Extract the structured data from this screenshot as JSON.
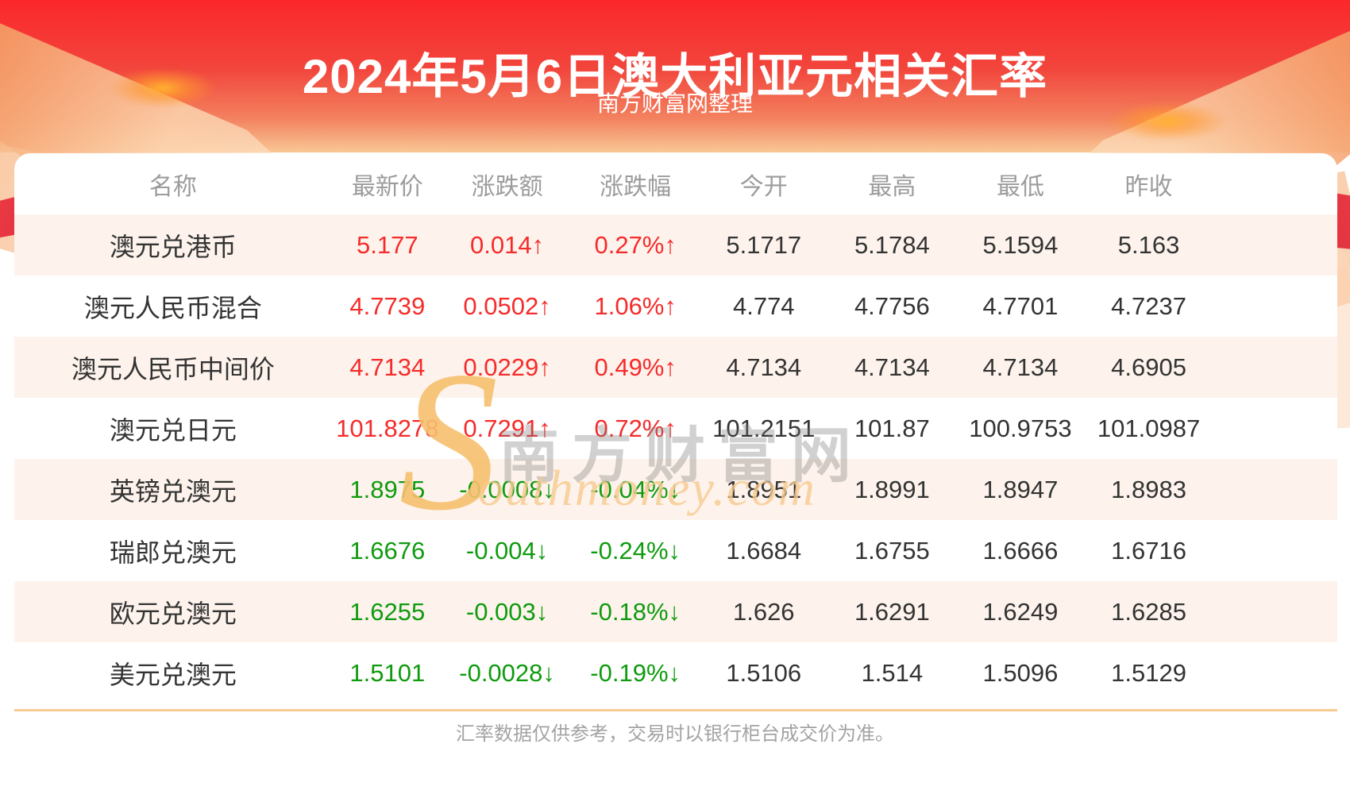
{
  "page": {
    "title": "2024年5月6日澳大利亚元相关汇率",
    "subtitle": "南方财富网整理",
    "footer_note": "汇率数据仅供参考，交易时以银行柜台成交价为准。"
  },
  "watermark": {
    "initial": "S",
    "cjk": "南方财富网",
    "latin": "outhmoney.com"
  },
  "arrows": {
    "up": "↑",
    "down": "↓"
  },
  "colors": {
    "hero_top": "#fb272b",
    "hero_mid": "#f2453c",
    "hero_low": "#f3825f",
    "hero_bottom": "#f9c795",
    "up": "#f62b2b",
    "down": "#0f9b0f",
    "stripe": "#fdf3ec",
    "divider": "#f6ca92",
    "header_text": "#9c9c9c",
    "cell_text": "#333333",
    "footer_text": "#a3a3a3"
  },
  "table": {
    "columns": [
      "名称",
      "最新价",
      "涨跌额",
      "涨跌幅",
      "今开",
      "最高",
      "最低",
      "昨收"
    ],
    "rows": [
      {
        "name": "澳元兑港币",
        "latest": "5.177",
        "change": "0.014",
        "change_pct": "0.27%",
        "trend": "up",
        "open": "5.1717",
        "high": "5.1784",
        "low": "5.1594",
        "prev_close": "5.163"
      },
      {
        "name": "澳元人民币混合",
        "latest": "4.7739",
        "change": "0.0502",
        "change_pct": "1.06%",
        "trend": "up",
        "open": "4.774",
        "high": "4.7756",
        "low": "4.7701",
        "prev_close": "4.7237"
      },
      {
        "name": "澳元人民币中间价",
        "latest": "4.7134",
        "change": "0.0229",
        "change_pct": "0.49%",
        "trend": "up",
        "open": "4.7134",
        "high": "4.7134",
        "low": "4.7134",
        "prev_close": "4.6905"
      },
      {
        "name": "澳元兑日元",
        "latest": "101.8278",
        "change": "0.7291",
        "change_pct": "0.72%",
        "trend": "up",
        "open": "101.2151",
        "high": "101.87",
        "low": "100.9753",
        "prev_close": "101.0987"
      },
      {
        "name": "英镑兑澳元",
        "latest": "1.8975",
        "change": "-0.0008",
        "change_pct": "-0.04%",
        "trend": "down",
        "open": "1.8951",
        "high": "1.8991",
        "low": "1.8947",
        "prev_close": "1.8983"
      },
      {
        "name": "瑞郎兑澳元",
        "latest": "1.6676",
        "change": "-0.004",
        "change_pct": "-0.24%",
        "trend": "down",
        "open": "1.6684",
        "high": "1.6755",
        "low": "1.6666",
        "prev_close": "1.6716"
      },
      {
        "name": "欧元兑澳元",
        "latest": "1.6255",
        "change": "-0.003",
        "change_pct": "-0.18%",
        "trend": "down",
        "open": "1.626",
        "high": "1.6291",
        "low": "1.6249",
        "prev_close": "1.6285"
      },
      {
        "name": "美元兑澳元",
        "latest": "1.5101",
        "change": "-0.0028",
        "change_pct": "-0.19%",
        "trend": "down",
        "open": "1.5106",
        "high": "1.514",
        "low": "1.5096",
        "prev_close": "1.5129"
      }
    ]
  },
  "chart_data": {
    "type": "table",
    "title": "2024年5月6日澳大利亚元相关汇率",
    "columns": [
      "名称",
      "最新价",
      "涨跌额",
      "涨跌幅",
      "今开",
      "最高",
      "最低",
      "昨收"
    ],
    "rows": [
      [
        "澳元兑港币",
        5.177,
        0.014,
        "0.27%",
        5.1717,
        5.1784,
        5.1594,
        5.163
      ],
      [
        "澳元人民币混合",
        4.7739,
        0.0502,
        "1.06%",
        4.774,
        4.7756,
        4.7701,
        4.7237
      ],
      [
        "澳元人民币中间价",
        4.7134,
        0.0229,
        "0.49%",
        4.7134,
        4.7134,
        4.7134,
        4.6905
      ],
      [
        "澳元兑日元",
        101.8278,
        0.7291,
        "0.72%",
        101.2151,
        101.87,
        100.9753,
        101.0987
      ],
      [
        "英镑兑澳元",
        1.8975,
        -0.0008,
        "-0.04%",
        1.8951,
        1.8991,
        1.8947,
        1.8983
      ],
      [
        "瑞郎兑澳元",
        1.6676,
        -0.004,
        "-0.24%",
        1.6684,
        1.6755,
        1.6666,
        1.6716
      ],
      [
        "欧元兑澳元",
        1.6255,
        -0.003,
        "-0.18%",
        1.626,
        1.6291,
        1.6249,
        1.6285
      ],
      [
        "美元兑澳元",
        1.5101,
        -0.0028,
        "-0.19%",
        1.5106,
        1.514,
        1.5096,
        1.5129
      ]
    ]
  }
}
